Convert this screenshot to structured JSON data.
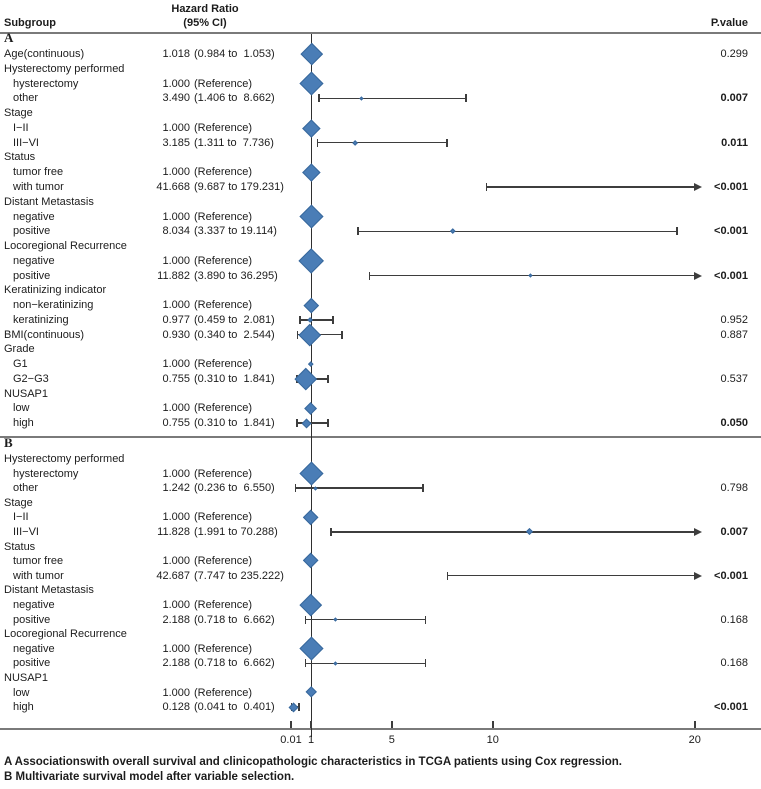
{
  "header": {
    "subgroup": "Subgroup",
    "hazard_ratio_line1": "Hazard Ratio",
    "hazard_ratio_line2": "(95% CI)",
    "p_value": "P.value"
  },
  "captions": {
    "line_a": "A Associationswith overall survival and clinicopathologic characteristics in TCGA patients using Cox regression.",
    "line_b": "B Multivariate survival model after variable selection."
  },
  "colors": {
    "marker_fill": "#4a7db6",
    "marker_edge": "#38689c",
    "line": "#3d3d3d",
    "separator": "#7a7a7a"
  },
  "chart_data": {
    "type": "forest",
    "x_scale": "linear",
    "x_reference": 1,
    "x_ticks": [
      0.01,
      1,
      5,
      10,
      20
    ],
    "x_tick_labels": [
      "0.01",
      "1",
      "5",
      "10",
      "20"
    ],
    "x_cap_note": "CIs extending beyond ~20 are drawn as right arrows",
    "sections": [
      {
        "label": "A",
        "rows": [
          {
            "label": "Age(continuous)",
            "indent": 0,
            "est_text": "1.018",
            "ci_text": "(0.984 to  1.053)",
            "est": 1.018,
            "lo": 0.984,
            "hi": 1.053,
            "show_ci": false,
            "p": "0.299",
            "p_bold": false,
            "size": 22
          },
          {
            "label": "Hysterectomy performed",
            "indent": 0
          },
          {
            "label": "hysterectomy",
            "indent": 1,
            "est_text": "1.000",
            "ci_text": "(Reference)",
            "est": 1.0,
            "size": 24
          },
          {
            "label": "other",
            "indent": 1,
            "est_text": "3.490",
            "ci_text": "(1.406 to  8.662)",
            "est": 3.49,
            "lo": 1.406,
            "hi": 8.662,
            "p": "0.007",
            "p_bold": true,
            "size": 4
          },
          {
            "label": "Stage",
            "indent": 0
          },
          {
            "label": "I−II",
            "indent": 1,
            "est_text": "1.000",
            "ci_text": "(Reference)",
            "est": 1.0,
            "size": 18
          },
          {
            "label": "III−VI",
            "indent": 1,
            "est_text": "3.185",
            "ci_text": "(1.311 to  7.736)",
            "est": 3.185,
            "lo": 1.311,
            "hi": 7.736,
            "p": "0.011",
            "p_bold": true,
            "size": 6
          },
          {
            "label": "Status",
            "indent": 0
          },
          {
            "label": "tumor free",
            "indent": 1,
            "est_text": "1.000",
            "ci_text": "(Reference)",
            "est": 1.0,
            "size": 18
          },
          {
            "label": "with tumor",
            "indent": 1,
            "est_text": "41.668",
            "ci_text": "(9.687 to 179.231)",
            "est": 41.668,
            "lo": 9.687,
            "hi": 179.231,
            "p": "<0.001",
            "p_bold": true,
            "size": null
          },
          {
            "label": "Distant Metastasis",
            "indent": 0
          },
          {
            "label": "negative",
            "indent": 1,
            "est_text": "1.000",
            "ci_text": "(Reference)",
            "est": 1.0,
            "size": 24
          },
          {
            "label": "positive",
            "indent": 1,
            "est_text": "8.034",
            "ci_text": "(3.337 to 19.114)",
            "est": 8.034,
            "lo": 3.337,
            "hi": 19.114,
            "p": "<0.001",
            "p_bold": true,
            "size": 5
          },
          {
            "label": "Locoregional Recurrence",
            "indent": 0
          },
          {
            "label": "negative",
            "indent": 1,
            "est_text": "1.000",
            "ci_text": "(Reference)",
            "est": 1.0,
            "size": 26
          },
          {
            "label": "positive",
            "indent": 1,
            "est_text": "11.882",
            "ci_text": "(3.890 to 36.295)",
            "est": 11.882,
            "lo": 3.89,
            "hi": 36.295,
            "p": "<0.001",
            "p_bold": true,
            "size": 4
          },
          {
            "label": "Keratinizing indicator",
            "indent": 0
          },
          {
            "label": "non−keratinizing",
            "indent": 1,
            "est_text": "1.000",
            "ci_text": "(Reference)",
            "est": 1.0,
            "size": 15
          },
          {
            "label": "keratinizing",
            "indent": 1,
            "est_text": "0.977",
            "ci_text": "(0.459 to  2.081)",
            "est": 0.977,
            "lo": 0.459,
            "hi": 2.081,
            "p": "0.952",
            "p_bold": false,
            "size": 6
          },
          {
            "label": "BMI(continuous)",
            "indent": 0,
            "est_text": "0.930",
            "ci_text": "(0.340 to  2.544)",
            "est": 0.93,
            "lo": 0.34,
            "hi": 2.544,
            "p": "0.887",
            "p_bold": false,
            "size": 22
          },
          {
            "label": "Grade",
            "indent": 0
          },
          {
            "label": "G1",
            "indent": 1,
            "est_text": "1.000",
            "ci_text": "(Reference)",
            "est": 1.0,
            "size": 5
          },
          {
            "label": "G2−G3",
            "indent": 1,
            "est_text": "0.755",
            "ci_text": "(0.310 to  1.841)",
            "est": 0.755,
            "lo": 0.31,
            "hi": 1.841,
            "p": "0.537",
            "p_bold": false,
            "size": 22
          },
          {
            "label": "NUSAP1",
            "indent": 0
          },
          {
            "label": "low",
            "indent": 1,
            "est_text": "1.000",
            "ci_text": "(Reference)",
            "est": 1.0,
            "size": 13
          },
          {
            "label": "high",
            "indent": 1,
            "est_text": "0.755",
            "ci_text": "(0.310 to  1.841)",
            "est": 0.755,
            "lo": 0.31,
            "hi": 1.841,
            "p": "0.050",
            "p_bold": true,
            "size": 10
          }
        ]
      },
      {
        "label": "B",
        "rows": [
          {
            "label": "Hysterectomy performed",
            "indent": 0
          },
          {
            "label": "hysterectomy",
            "indent": 1,
            "est_text": "1.000",
            "ci_text": "(Reference)",
            "est": 1.0,
            "size": 24
          },
          {
            "label": "other",
            "indent": 1,
            "est_text": "1.242",
            "ci_text": "(0.236 to  6.550)",
            "est": 1.242,
            "lo": 0.236,
            "hi": 6.55,
            "p": "0.798",
            "p_bold": false,
            "size": 4
          },
          {
            "label": "Stage",
            "indent": 0
          },
          {
            "label": "I−II",
            "indent": 1,
            "est_text": "1.000",
            "ci_text": "(Reference)",
            "est": 1.0,
            "size": 16
          },
          {
            "label": "III−VI",
            "indent": 1,
            "est_text": "11.828",
            "ci_text": "(1.991 to 70.288)",
            "est": 11.828,
            "lo": 1.991,
            "hi": 70.288,
            "p": "0.007",
            "p_bold": true,
            "size": 7
          },
          {
            "label": "Status",
            "indent": 0
          },
          {
            "label": "tumor free",
            "indent": 1,
            "est_text": "1.000",
            "ci_text": "(Reference)",
            "est": 1.0,
            "size": 16
          },
          {
            "label": "with tumor",
            "indent": 1,
            "est_text": "42.687",
            "ci_text": "(7.747 to 235.222)",
            "est": 42.687,
            "lo": 7.747,
            "hi": 235.222,
            "p": "<0.001",
            "p_bold": true,
            "size": null
          },
          {
            "label": "Distant Metastasis",
            "indent": 0
          },
          {
            "label": "negative",
            "indent": 1,
            "est_text": "1.000",
            "ci_text": "(Reference)",
            "est": 1.0,
            "size": 22
          },
          {
            "label": "positive",
            "indent": 1,
            "est_text": "2.188",
            "ci_text": "(0.718 to  6.662)",
            "est": 2.188,
            "lo": 0.718,
            "hi": 6.662,
            "p": "0.168",
            "p_bold": false,
            "size": 4
          },
          {
            "label": "Locoregional Recurrence",
            "indent": 0
          },
          {
            "label": "negative",
            "indent": 1,
            "est_text": "1.000",
            "ci_text": "(Reference)",
            "est": 1.0,
            "size": 24
          },
          {
            "label": "positive",
            "indent": 1,
            "est_text": "2.188",
            "ci_text": "(0.718 to  6.662)",
            "est": 2.188,
            "lo": 0.718,
            "hi": 6.662,
            "p": "0.168",
            "p_bold": false,
            "size": 4
          },
          {
            "label": "NUSAP1",
            "indent": 0
          },
          {
            "label": "low",
            "indent": 1,
            "est_text": "1.000",
            "ci_text": "(Reference)",
            "est": 1.0,
            "size": 12
          },
          {
            "label": "high",
            "indent": 1,
            "est_text": "0.128",
            "ci_text": "(0.041 to  0.401)",
            "est": 0.128,
            "lo": 0.041,
            "hi": 0.401,
            "p": "<0.001",
            "p_bold": true,
            "size": 10
          }
        ]
      }
    ]
  }
}
